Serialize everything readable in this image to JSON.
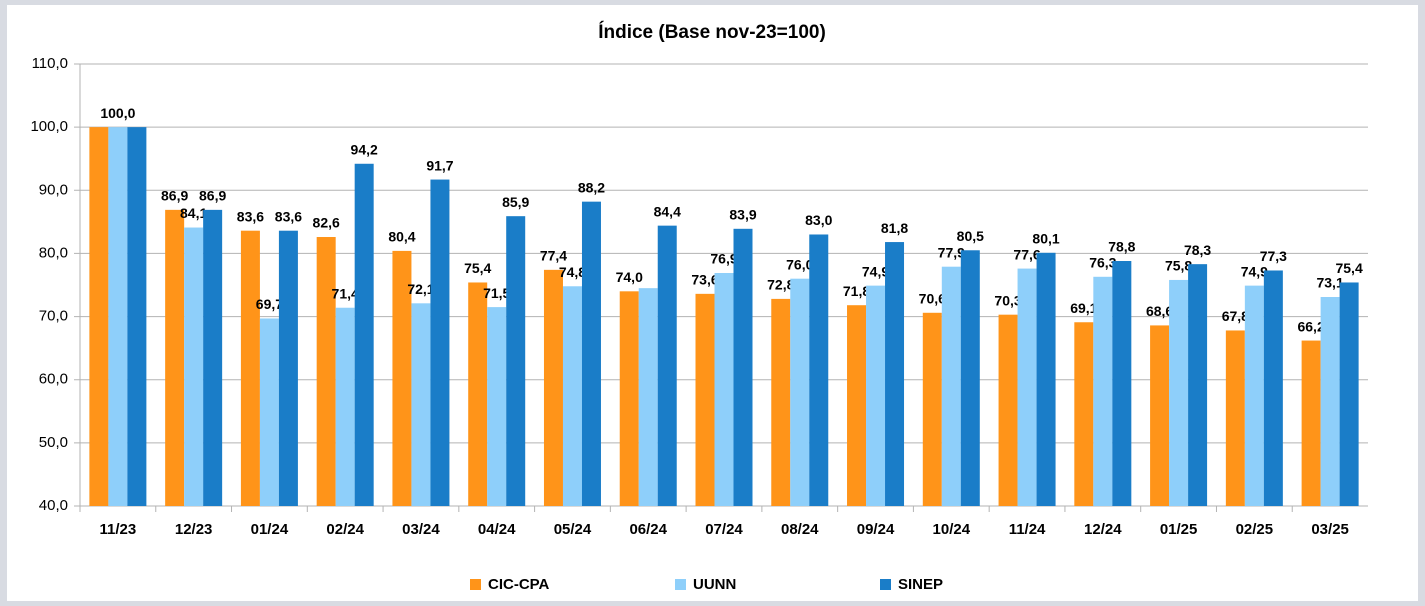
{
  "chart_data": {
    "type": "bar",
    "title": "Índice (Base nov-23=100)",
    "categories": [
      "11/23",
      "12/23",
      "01/24",
      "02/24",
      "03/24",
      "04/24",
      "05/24",
      "06/24",
      "07/24",
      "08/24",
      "09/24",
      "10/24",
      "11/24",
      "12/24",
      "01/25",
      "02/25",
      "03/25"
    ],
    "series": [
      {
        "name": "CIC-CPA",
        "color": "#ff9419",
        "values": [
          100.0,
          86.9,
          83.6,
          82.6,
          80.4,
          75.4,
          77.4,
          74.0,
          73.6,
          72.8,
          71.8,
          70.6,
          70.3,
          69.1,
          68.6,
          67.8,
          66.2
        ],
        "value_labels": [
          null,
          "86,9",
          "83,6",
          "82,6",
          "80,4",
          "75,4",
          "77,4",
          "74,0",
          "73,6",
          "72,8",
          "71,8",
          "70,6",
          "70,3",
          "69,1",
          "68,6",
          "67,8",
          "66,2"
        ]
      },
      {
        "name": "UUNN",
        "color": "#8ecffa",
        "values": [
          100.0,
          84.1,
          69.7,
          71.4,
          72.1,
          71.5,
          74.8,
          74.5,
          76.9,
          76.0,
          74.9,
          77.9,
          77.6,
          76.3,
          75.8,
          74.9,
          73.1
        ],
        "value_labels": [
          "100,0",
          "84,1",
          "69,7",
          "71,4",
          "72,1",
          "71,5",
          "74,8",
          null,
          "76,9",
          "76,0",
          "74,9",
          "77,9",
          "77,6",
          "76,3",
          "75,8",
          "74,9",
          "73,1"
        ]
      },
      {
        "name": "SINEP",
        "color": "#1a7dc8",
        "values": [
          100.0,
          86.9,
          83.6,
          94.2,
          91.7,
          85.9,
          88.2,
          84.4,
          83.9,
          83.0,
          81.8,
          80.5,
          80.1,
          78.8,
          78.3,
          77.3,
          75.4
        ],
        "value_labels": [
          null,
          "86,9",
          "83,6",
          "94,2",
          "91,7",
          "85,9",
          "88,2",
          "84,4",
          "83,9",
          "83,0",
          "81,8",
          "80,5",
          "80,1",
          "78,8",
          "78,3",
          "77,3",
          "75,4"
        ]
      }
    ],
    "ylim": [
      40,
      110
    ],
    "yticks": [
      {
        "value": 40,
        "label": "40,0"
      },
      {
        "value": 50,
        "label": "50,0"
      },
      {
        "value": 60,
        "label": "60,0"
      },
      {
        "value": 70,
        "label": "70,0"
      },
      {
        "value": 80,
        "label": "80,0"
      },
      {
        "value": 90,
        "label": "90,0"
      },
      {
        "value": 100,
        "label": "100,0"
      },
      {
        "value": 110,
        "label": "110,0"
      }
    ],
    "grid": true,
    "legend": "bottom"
  }
}
